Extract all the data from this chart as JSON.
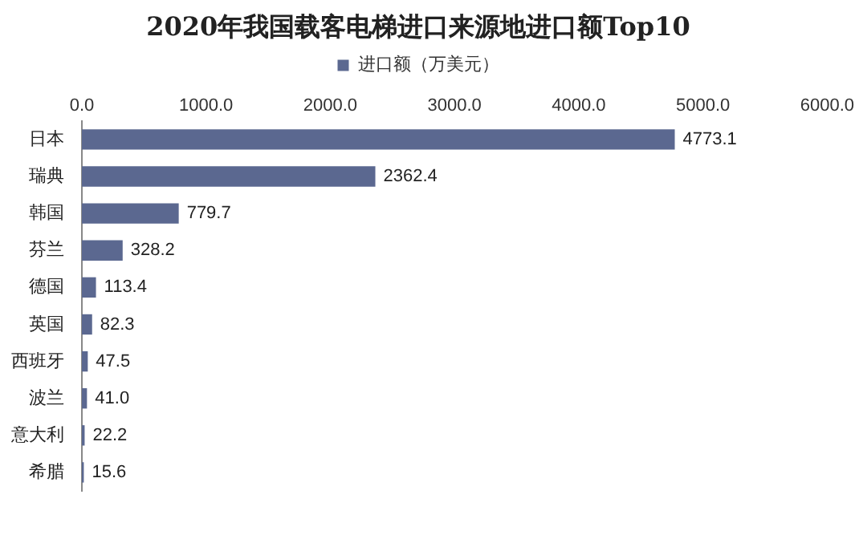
{
  "chart_data": {
    "type": "bar",
    "orientation": "horizontal",
    "title": "2020年我国载客电梯进口来源地进口额Top10",
    "categories": [
      "日本",
      "瑞典",
      "韩国",
      "芬兰",
      "德国",
      "英国",
      "西班牙",
      "波兰",
      "意大利",
      "希腊"
    ],
    "series": [
      {
        "name": "进口额（万美元）",
        "color": "#5b6890",
        "values": [
          4773.1,
          2362.4,
          779.7,
          328.2,
          113.4,
          82.3,
          47.5,
          41.0,
          22.2,
          15.6
        ],
        "value_labels": [
          "4773.1",
          "2362.4",
          "779.7",
          "328.2",
          "113.4",
          "82.3",
          "47.5",
          "41.0",
          "22.2",
          "15.6"
        ]
      }
    ],
    "xlim": [
      0,
      6000
    ],
    "xticks": [
      {
        "value": 0,
        "label": "0.0"
      },
      {
        "value": 1000,
        "label": "1000.0"
      },
      {
        "value": 2000,
        "label": "2000.0"
      },
      {
        "value": 3000,
        "label": "3000.0"
      },
      {
        "value": 4000,
        "label": "4000.0"
      },
      {
        "value": 5000,
        "label": "5000.0"
      },
      {
        "value": 6000,
        "label": "6000.0"
      }
    ],
    "legend": "top",
    "grid": false
  }
}
